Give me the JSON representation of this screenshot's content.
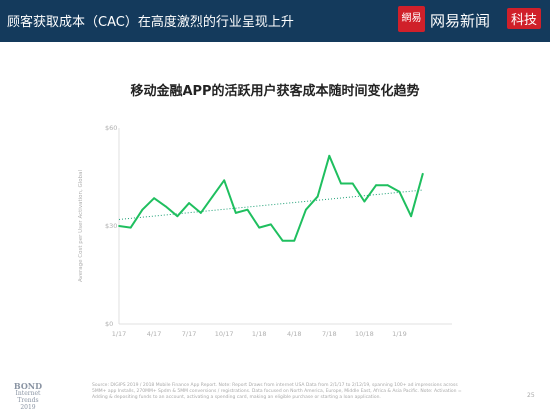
{
  "header": {
    "title": "顾客获取成本（CAC）在高度激烈的行业呈现上升",
    "logo_mark": "網易",
    "logo_text": "网易新闻",
    "logo_badge": "科技"
  },
  "colors": {
    "header_bg": "#143a5c",
    "line": "#1fbf5f",
    "trend": "#1a9e73",
    "axis_text": "#b0b0b0"
  },
  "chart_data": {
    "type": "line",
    "title": "移动金融APP的活跃用户获客成本随时间变化趋势",
    "ylabel": "Average Cost per User Activation, Global",
    "ylim": [
      0,
      60
    ],
    "yticks": [
      {
        "value": 0,
        "label": "$0"
      },
      {
        "value": 30,
        "label": "$30"
      },
      {
        "value": 60,
        "label": "$60"
      }
    ],
    "xlim": [
      0,
      28.5
    ],
    "xticks": [
      {
        "value": 0,
        "label": "1/17"
      },
      {
        "value": 3,
        "label": "4/17"
      },
      {
        "value": 6,
        "label": "7/17"
      },
      {
        "value": 9,
        "label": "10/17"
      },
      {
        "value": 12,
        "label": "1/18"
      },
      {
        "value": 15,
        "label": "4/18"
      },
      {
        "value": 18,
        "label": "7/18"
      },
      {
        "value": 21,
        "label": "10/18"
      },
      {
        "value": 24,
        "label": "1/19"
      }
    ],
    "series": [
      {
        "x": [
          0,
          1,
          2,
          3,
          4,
          5,
          6,
          7,
          8,
          9,
          10,
          11,
          12,
          13,
          14,
          15,
          16,
          17,
          18,
          19,
          20,
          21,
          22,
          23,
          24,
          25,
          26
        ],
        "values": [
          30,
          29.5,
          35,
          38.5,
          36,
          33,
          37,
          34,
          39,
          44,
          34,
          35,
          29.5,
          30.5,
          25.5,
          25.5,
          35,
          39,
          51.5,
          43,
          43,
          37.5,
          42.5,
          42.5,
          40.5,
          33,
          46
        ]
      }
    ],
    "trendline": {
      "style": "dotted",
      "start": [
        0,
        32
      ],
      "end": [
        26,
        41
      ]
    }
  },
  "footer": {
    "logo_line1": "BOND",
    "logo_line2": "Internet Trends",
    "logo_line3": "2019",
    "source": "Source: DIGIPS 2019 / 2018 Mobile Finance App Report. Note: Report Draws from internet USA Data from 2/1/17 to 2/12/19, spanning 100+ ad impressions across 5MM+ app Installs, 270MM+ Spdm & 5MM conversions / registrations. Data focused on North America, Europe, Middle East, Africa & Asia Pacific. Note: Activation = Adding & depositing funds to an account, activating a spending card, making an eligible purchase or starting a loan application.",
    "page": "25"
  }
}
